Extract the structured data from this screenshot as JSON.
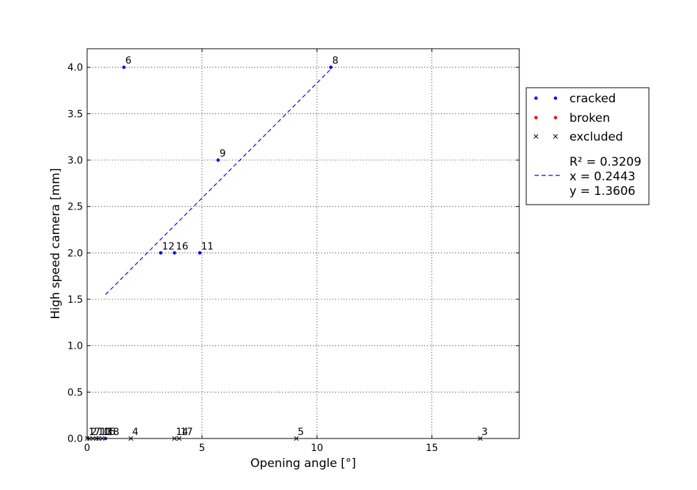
{
  "chart_data": {
    "type": "scatter",
    "title": "",
    "xlabel": "Opening angle [°]",
    "ylabel": "High speed camera [mm]",
    "xlim": [
      0,
      18.8
    ],
    "ylim": [
      0,
      4.2
    ],
    "xticks": [
      0,
      5,
      10,
      15
    ],
    "yticks": [
      0.0,
      0.5,
      1.0,
      1.5,
      2.0,
      2.5,
      3.0,
      3.5,
      4.0
    ],
    "grid": true,
    "legend_position": "outside-right",
    "series": [
      {
        "name": "cracked",
        "marker": "dot",
        "color": "#0000ff",
        "points": [
          {
            "x": 1.6,
            "y": 4.0,
            "label": "6"
          },
          {
            "x": 10.6,
            "y": 4.0,
            "label": "8"
          },
          {
            "x": 5.7,
            "y": 3.0,
            "label": "9"
          },
          {
            "x": 3.2,
            "y": 2.0,
            "label": "12"
          },
          {
            "x": 3.8,
            "y": 2.0,
            "label": "16"
          },
          {
            "x": 4.9,
            "y": 2.0,
            "label": "11"
          },
          {
            "x": 0.8,
            "y": 0.0,
            "label": "18"
          }
        ]
      },
      {
        "name": "broken",
        "marker": "dot",
        "color": "#ff0000",
        "points": []
      },
      {
        "name": "excluded",
        "marker": "x",
        "color": "#000000",
        "points": [
          {
            "x": 0.0,
            "y": 0.0,
            "label": "1"
          },
          {
            "x": 0.1,
            "y": 0.0,
            "label": "2"
          },
          {
            "x": 0.25,
            "y": 0.0,
            "label": "7"
          },
          {
            "x": 0.4,
            "y": 0.0,
            "label": "10"
          },
          {
            "x": 0.5,
            "y": 0.0,
            "label": "13"
          },
          {
            "x": 0.65,
            "y": 0.0,
            "label": "15"
          },
          {
            "x": 1.9,
            "y": 0.0,
            "label": "4"
          },
          {
            "x": 3.8,
            "y": 0.0,
            "label": "14"
          },
          {
            "x": 4.0,
            "y": 0.0,
            "label": "17"
          },
          {
            "x": 9.1,
            "y": 0.0,
            "label": "5"
          },
          {
            "x": 17.1,
            "y": 0.0,
            "label": "3"
          }
        ]
      }
    ],
    "fit": {
      "color": "#0000ff",
      "x_range": [
        0.8,
        10.6
      ],
      "y_range": [
        1.55,
        3.98
      ],
      "legend_lines": [
        "R² = 0.3209",
        "x = 0.2443",
        "y = 1.3606"
      ]
    }
  }
}
